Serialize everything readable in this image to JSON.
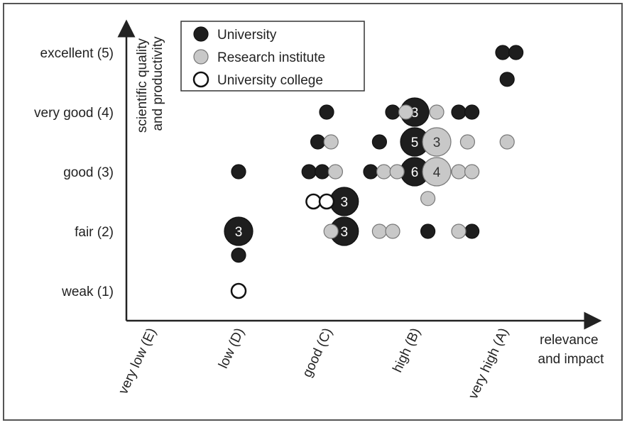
{
  "chart_data": {
    "type": "scatter",
    "title": "",
    "xlabel": "relevance and impact",
    "ylabel": "scientific quality and productivity",
    "x_categories": [
      "very low (E)",
      "low (D)",
      "good (C)",
      "high (B)",
      "very high (A)"
    ],
    "y_categories": [
      "weak (1)",
      "fair (2)",
      "good (3)",
      "very good (4)",
      "excellent (5)"
    ],
    "legend_position": "top-center",
    "grid": false,
    "colors": {
      "University": "#1e1e1e",
      "Research institute": "#c8c8c8",
      "University college": "#ffffff"
    },
    "series": [
      {
        "name": "University",
        "points": [
          {
            "x": 5.0,
            "y": 5.0,
            "count": 1
          },
          {
            "x": 5.15,
            "y": 5.0,
            "count": 1
          },
          {
            "x": 5.05,
            "y": 4.55,
            "count": 1
          },
          {
            "x": 3.0,
            "y": 4.0,
            "count": 1
          },
          {
            "x": 3.75,
            "y": 4.0,
            "count": 1
          },
          {
            "x": 4.0,
            "y": 4.0,
            "count": 3
          },
          {
            "x": 4.5,
            "y": 4.0,
            "count": 1
          },
          {
            "x": 4.65,
            "y": 4.0,
            "count": 1
          },
          {
            "x": 2.9,
            "y": 3.5,
            "count": 1
          },
          {
            "x": 3.6,
            "y": 3.5,
            "count": 1
          },
          {
            "x": 4.0,
            "y": 3.5,
            "count": 5
          },
          {
            "x": 2.0,
            "y": 3.0,
            "count": 1
          },
          {
            "x": 2.8,
            "y": 3.0,
            "count": 1
          },
          {
            "x": 2.95,
            "y": 3.0,
            "count": 1
          },
          {
            "x": 3.5,
            "y": 3.0,
            "count": 1
          },
          {
            "x": 4.0,
            "y": 3.0,
            "count": 6
          },
          {
            "x": 3.2,
            "y": 2.5,
            "count": 3
          },
          {
            "x": 2.0,
            "y": 2.0,
            "count": 3
          },
          {
            "x": 3.2,
            "y": 2.0,
            "count": 3
          },
          {
            "x": 4.15,
            "y": 2.0,
            "count": 1
          },
          {
            "x": 4.65,
            "y": 2.0,
            "count": 1
          },
          {
            "x": 2.0,
            "y": 1.6,
            "count": 1
          }
        ]
      },
      {
        "name": "Research institute",
        "points": [
          {
            "x": 3.9,
            "y": 4.0,
            "count": 1
          },
          {
            "x": 4.25,
            "y": 4.0,
            "count": 1
          },
          {
            "x": 3.05,
            "y": 3.5,
            "count": 1
          },
          {
            "x": 4.25,
            "y": 3.5,
            "count": 3
          },
          {
            "x": 4.6,
            "y": 3.5,
            "count": 1
          },
          {
            "x": 5.05,
            "y": 3.5,
            "count": 1
          },
          {
            "x": 3.1,
            "y": 3.0,
            "count": 1
          },
          {
            "x": 3.65,
            "y": 3.0,
            "count": 1
          },
          {
            "x": 3.8,
            "y": 3.0,
            "count": 1
          },
          {
            "x": 4.25,
            "y": 3.0,
            "count": 4
          },
          {
            "x": 4.5,
            "y": 3.0,
            "count": 1
          },
          {
            "x": 4.65,
            "y": 3.0,
            "count": 1
          },
          {
            "x": 4.15,
            "y": 2.55,
            "count": 1
          },
          {
            "x": 3.05,
            "y": 2.0,
            "count": 1
          },
          {
            "x": 3.6,
            "y": 2.0,
            "count": 1
          },
          {
            "x": 3.75,
            "y": 2.0,
            "count": 1
          },
          {
            "x": 4.5,
            "y": 2.0,
            "count": 1
          }
        ]
      },
      {
        "name": "University college",
        "points": [
          {
            "x": 2.85,
            "y": 2.5,
            "count": 1
          },
          {
            "x": 3.0,
            "y": 2.5,
            "count": 1
          },
          {
            "x": 2.0,
            "y": 1.0,
            "count": 1
          }
        ]
      }
    ]
  }
}
